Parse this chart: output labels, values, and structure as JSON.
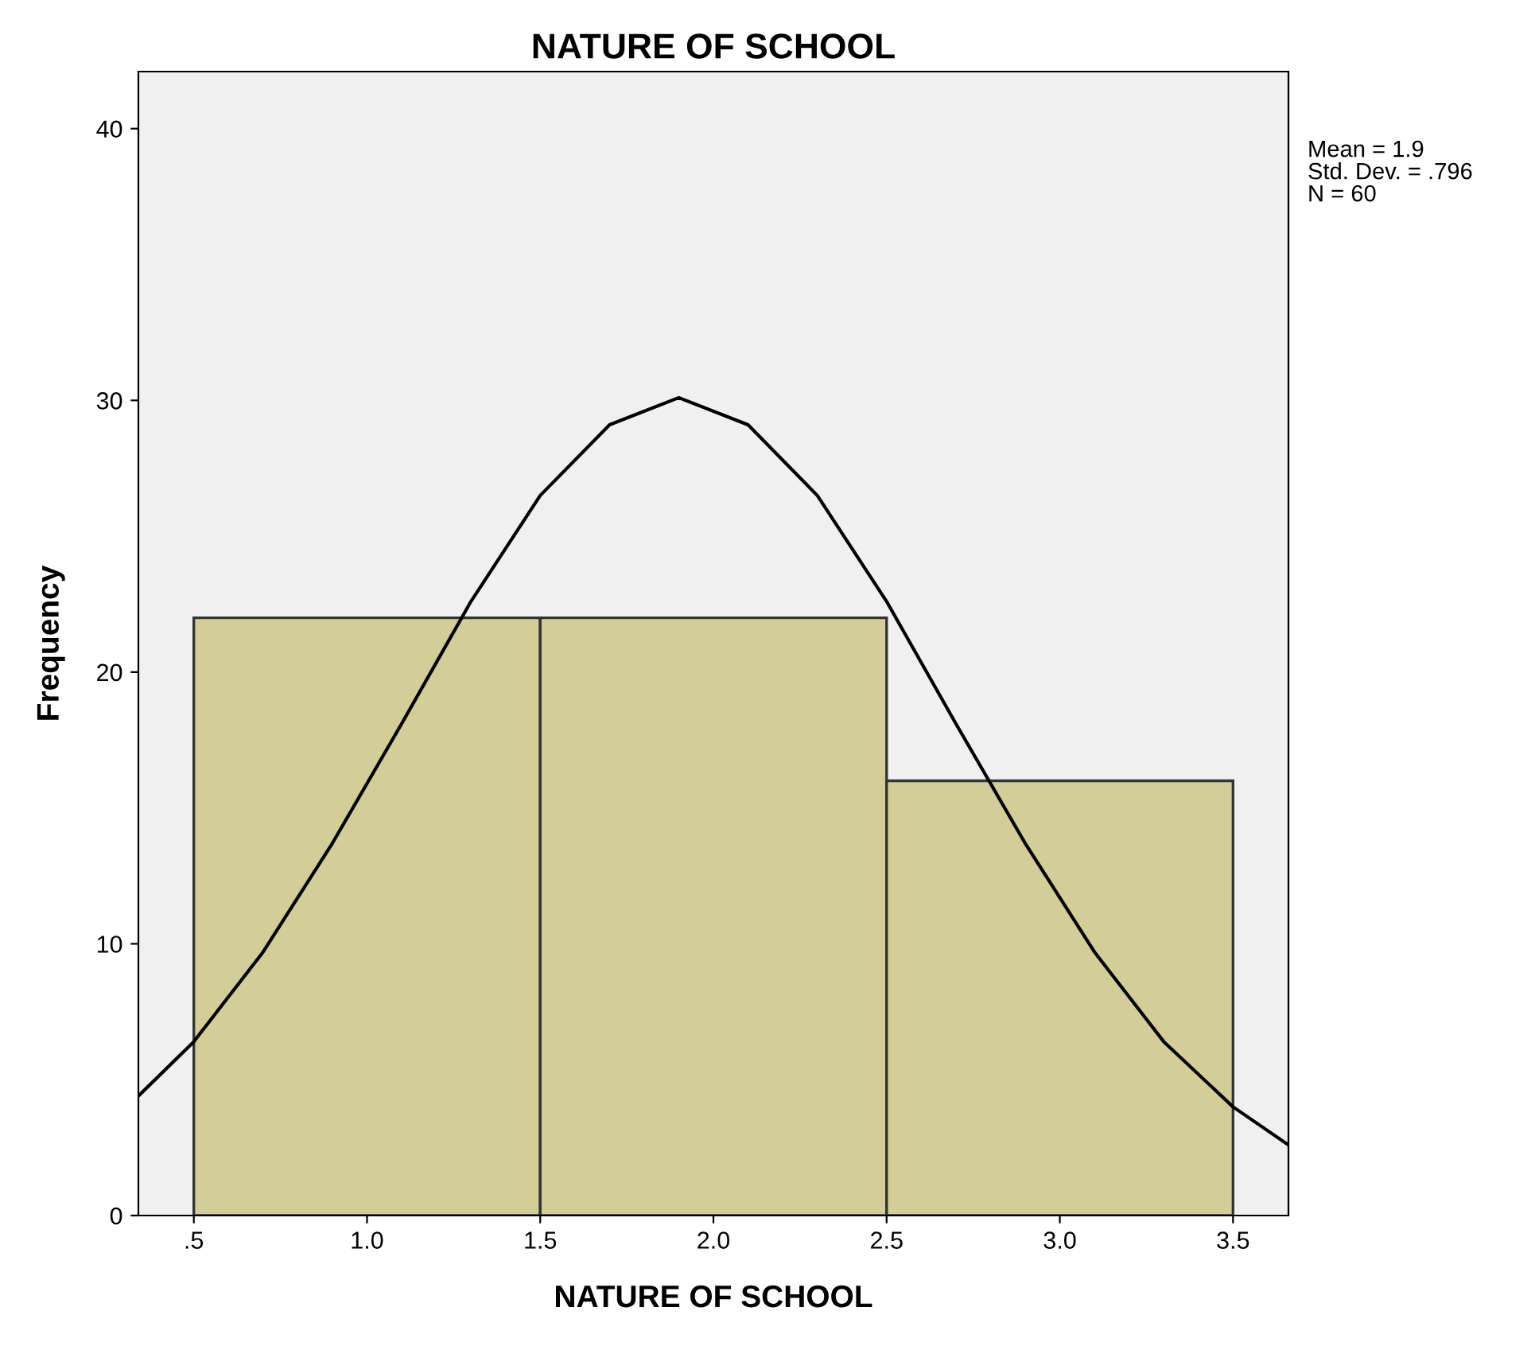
{
  "chart_data": {
    "type": "histogram",
    "title": "NATURE OF SCHOOL",
    "xlabel": "NATURE OF SCHOOL",
    "ylabel": "Frequency",
    "bins": [
      0.5,
      1.5,
      2.5,
      3.5
    ],
    "values": [
      22,
      22,
      16
    ],
    "color": "#d3ce98",
    "series": [
      {
        "type": "line",
        "color": "#000000",
        "x": [
          0.34,
          0.5,
          0.7,
          0.9,
          1.1,
          1.3,
          1.5,
          1.7,
          1.9,
          2.1,
          2.3,
          2.5,
          2.7,
          2.9,
          3.1,
          3.3,
          3.5,
          3.66
        ],
        "values": [
          4.4,
          6.4,
          9.7,
          13.7,
          18.1,
          22.6,
          26.5,
          29.1,
          30.1,
          29.1,
          26.5,
          22.6,
          18.1,
          13.7,
          9.7,
          6.4,
          4.0,
          2.6
        ]
      }
    ],
    "xlim": [
      0.34,
      3.66
    ],
    "ylim": [
      0,
      42.1
    ],
    "xticks": [
      {
        "value": 0.5,
        "label": ".5"
      },
      {
        "value": 1.0,
        "label": "1.0"
      },
      {
        "value": 1.5,
        "label": "1.5"
      },
      {
        "value": 2.0,
        "label": "2.0"
      },
      {
        "value": 2.5,
        "label": "2.5"
      },
      {
        "value": 3.0,
        "label": "3.0"
      },
      {
        "value": 3.5,
        "label": "3.5"
      }
    ],
    "yticks": [
      0,
      10,
      20,
      30,
      40
    ],
    "annotations": [
      "Mean = 1.9",
      "Std. Dev. = .796",
      "N = 60"
    ],
    "grid": false,
    "legend": false,
    "line_style": "solid",
    "marker": "none"
  }
}
